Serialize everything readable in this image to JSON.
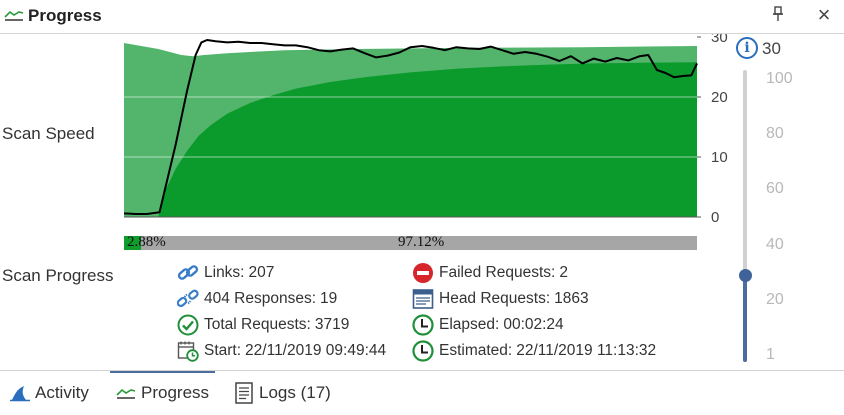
{
  "panel": {
    "title": "Progress"
  },
  "labels": {
    "scan_speed": "Scan Speed",
    "scan_progress": "Scan Progress"
  },
  "chart_data": {
    "type": "area",
    "y_ticks": [
      "30",
      "20",
      "10",
      "0"
    ],
    "ylim": [
      0,
      30
    ],
    "grid": true,
    "series": [
      {
        "kind": "area",
        "color": "#52b56b",
        "x": [
          0,
          3,
          6,
          8,
          10,
          12,
          14,
          18,
          22,
          28,
          40,
          60,
          80,
          100
        ],
        "values": [
          29,
          28.5,
          28,
          27.5,
          27,
          26.8,
          27,
          27.3,
          27.5,
          27.8,
          28,
          28.2,
          28.3,
          28.5
        ]
      },
      {
        "kind": "area",
        "color": "#0b9a2c",
        "x": [
          0,
          6,
          7,
          9,
          11,
          13,
          15,
          18,
          22,
          26,
          30,
          36,
          42,
          50,
          58,
          66,
          74,
          82,
          90,
          100
        ],
        "values": [
          0,
          0,
          4,
          8,
          11,
          13.5,
          15.2,
          17.2,
          19,
          20.3,
          21.4,
          22.5,
          23.3,
          24.1,
          24.7,
          25.1,
          25.4,
          25.6,
          25.7,
          25.8
        ]
      },
      {
        "kind": "line",
        "color": "#000000",
        "x": [
          0,
          2,
          4,
          6.2,
          7,
          9,
          11,
          12.5,
          13.5,
          14.5,
          16,
          18,
          20,
          22,
          24,
          26,
          28,
          30,
          32,
          34,
          36,
          38,
          40,
          42,
          44,
          46,
          48,
          50,
          52,
          54,
          56,
          58,
          60,
          62,
          64,
          66,
          68,
          70,
          72,
          74,
          76,
          78,
          80,
          82,
          84,
          86,
          88,
          90,
          91.5,
          93,
          94.5,
          96,
          97.5,
          99,
          100
        ],
        "values": [
          0.6,
          0.5,
          0.5,
          0.8,
          4,
          12,
          21,
          27,
          29.1,
          29.5,
          29.3,
          29.1,
          29.2,
          29,
          29,
          28.8,
          28.6,
          28.6,
          28.3,
          27.8,
          27.6,
          27.9,
          28.1,
          27.3,
          26.6,
          26.9,
          27.4,
          28.3,
          28.5,
          28.2,
          27.8,
          28.3,
          28.1,
          28,
          28.4,
          27.8,
          27.2,
          27.5,
          27.2,
          26.7,
          26,
          26.8,
          25.6,
          26.4,
          25.9,
          26.5,
          26.1,
          26.8,
          27,
          24.5,
          24,
          23.3,
          23.5,
          23.6,
          25.6
        ]
      }
    ]
  },
  "info_value": "30",
  "slider": {
    "ticks": [
      "100",
      "80",
      "60",
      "40",
      "20",
      "1"
    ],
    "value": 30,
    "min": 1,
    "max": 100
  },
  "progress": {
    "done_percent": 2.88,
    "done_text": "2.88%",
    "remaining_text": "97.12%"
  },
  "stats": {
    "links": {
      "label": "Links:",
      "value": "207"
    },
    "responses_404": {
      "label": "404 Responses:",
      "value": "19"
    },
    "total_requests": {
      "label": "Total Requests:",
      "value": "3719"
    },
    "start": {
      "label": "Start:",
      "value": "22/11/2019 09:49:44"
    },
    "failed_requests": {
      "label": "Failed Requests:",
      "value": "2"
    },
    "head_requests": {
      "label": "Head Requests:",
      "value": "1863"
    },
    "elapsed": {
      "label": "Elapsed:",
      "value": "00:02:24"
    },
    "estimated": {
      "label": "Estimated:",
      "value": "22/11/2019 11:13:32"
    }
  },
  "tabs": [
    {
      "label": "Activity",
      "active": false
    },
    {
      "label": "Progress",
      "active": true
    },
    {
      "label": "Logs (17)",
      "active": false
    }
  ],
  "colors": {
    "accent": "#4a6da0",
    "chart_light": "#52b56b",
    "chart_dark": "#0b9a2c",
    "progress_fill": "#0f9e2c",
    "progress_bg": "#a6a6a6"
  }
}
